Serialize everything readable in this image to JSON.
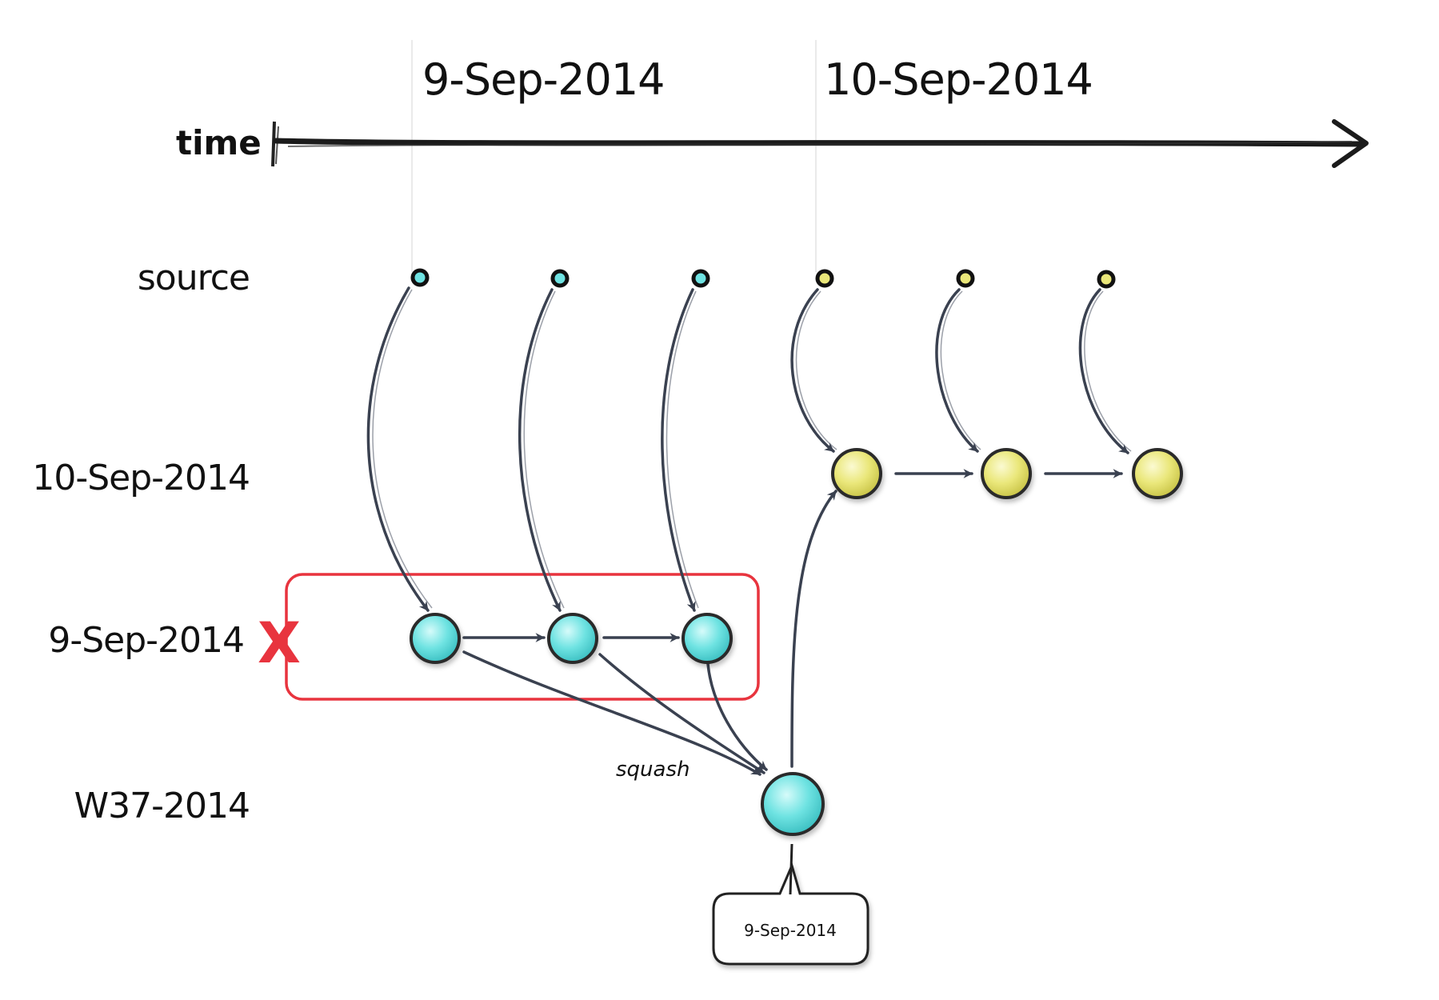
{
  "header": {
    "dates": [
      "9-Sep-2014",
      "10-Sep-2014"
    ],
    "time_label": "time"
  },
  "lanes": {
    "source": "source",
    "day2": "10-Sep-2014",
    "day1": "9-Sep-2014",
    "week": "W37-2014"
  },
  "annotations": {
    "squash": "squash",
    "callout": "9-Sep-2014",
    "delete_mark": "X"
  },
  "colors": {
    "cyan": "#6fe3e2",
    "yellow": "#eae77a",
    "ink": "#3a4150",
    "highlight_box": "#e8343e"
  }
}
